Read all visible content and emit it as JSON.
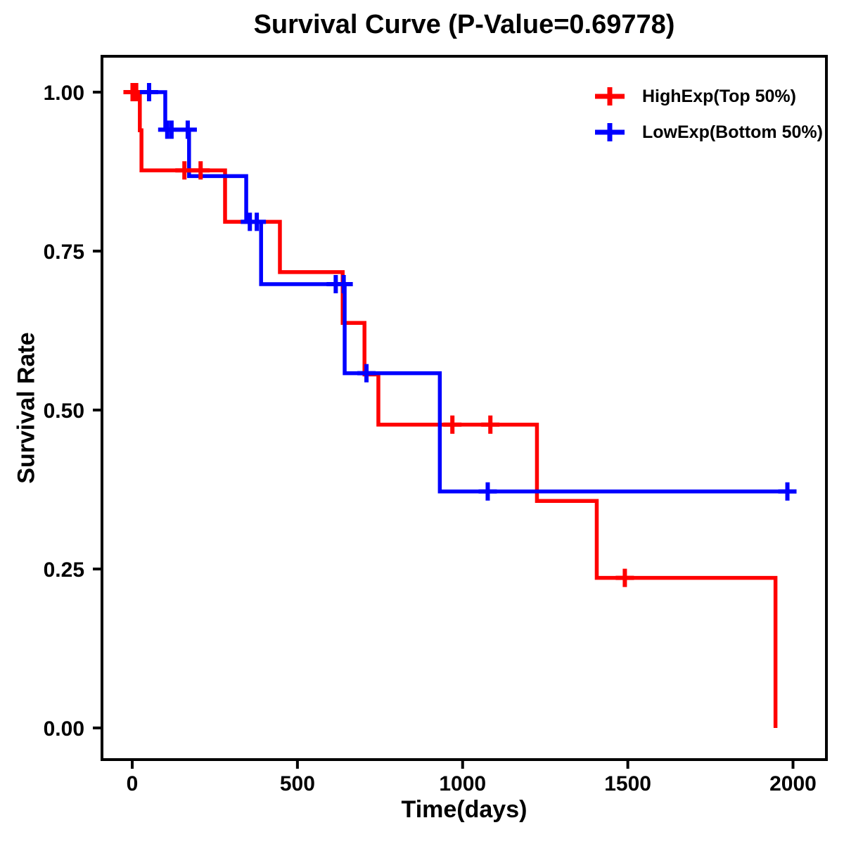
{
  "page": {
    "background": "#FFFFFF",
    "text_color": "#000000"
  },
  "chart_data": {
    "type": "line",
    "chart_kind": "kaplan-meier-survival-step",
    "title": "Survival Curve (P-Value=0.69778)",
    "p_value": "0.69778",
    "xlabel": "Time(days)",
    "ylabel": "Survival Rate",
    "xlim": [
      -92,
      2101
    ],
    "ylim": [
      -0.05,
      1.056
    ],
    "grid": false,
    "legend_position": "top-right",
    "axis_color": "#000000",
    "x_ticks": [
      {
        "value": 0,
        "label": "0"
      },
      {
        "value": 500,
        "label": "500"
      },
      {
        "value": 1000,
        "label": "1000"
      },
      {
        "value": 1500,
        "label": "1500"
      },
      {
        "value": 2000,
        "label": "2000"
      }
    ],
    "y_ticks": [
      {
        "value": 0.0,
        "label": "0.00"
      },
      {
        "value": 0.25,
        "label": "0.25"
      },
      {
        "value": 0.5,
        "label": "0.50"
      },
      {
        "value": 0.75,
        "label": "0.75"
      },
      {
        "value": 1.0,
        "label": "1.00"
      }
    ],
    "series": [
      {
        "name": "HighExp(Top 50%)",
        "color": "#FF0000",
        "marker": "plus-censor",
        "end_time": 1947,
        "steps": [
          [
            0,
            1.0
          ],
          [
            23,
            0.94
          ],
          [
            28,
            0.877
          ],
          [
            281,
            0.796
          ],
          [
            447,
            0.717
          ],
          [
            637,
            0.637
          ],
          [
            703,
            0.556
          ],
          [
            745,
            0.477
          ],
          [
            1225,
            0.357
          ],
          [
            1406,
            0.236
          ],
          [
            1947,
            0.0
          ]
        ],
        "censors": [
          [
            1,
            1.0
          ],
          [
            12,
            1.0
          ],
          [
            158,
            0.877
          ],
          [
            207,
            0.877
          ],
          [
            969,
            0.477
          ],
          [
            1084,
            0.477
          ],
          [
            1491,
            0.236
          ]
        ]
      },
      {
        "name": "LowExp(Bottom 50%)",
        "color": "#0000FF",
        "marker": "plus-censor",
        "end_time": 1985,
        "steps": [
          [
            0,
            1.0
          ],
          [
            100,
            0.941
          ],
          [
            172,
            0.868
          ],
          [
            345,
            0.796
          ],
          [
            390,
            0.698
          ],
          [
            643,
            0.558
          ],
          [
            931,
            0.372
          ]
        ],
        "censors": [
          [
            51,
            1.0
          ],
          [
            106,
            0.941
          ],
          [
            119,
            0.941
          ],
          [
            168,
            0.941
          ],
          [
            356,
            0.796
          ],
          [
            377,
            0.796
          ],
          [
            616,
            0.698
          ],
          [
            640,
            0.698
          ],
          [
            709,
            0.558
          ],
          [
            1076,
            0.372
          ],
          [
            1983,
            0.372
          ]
        ]
      }
    ]
  }
}
